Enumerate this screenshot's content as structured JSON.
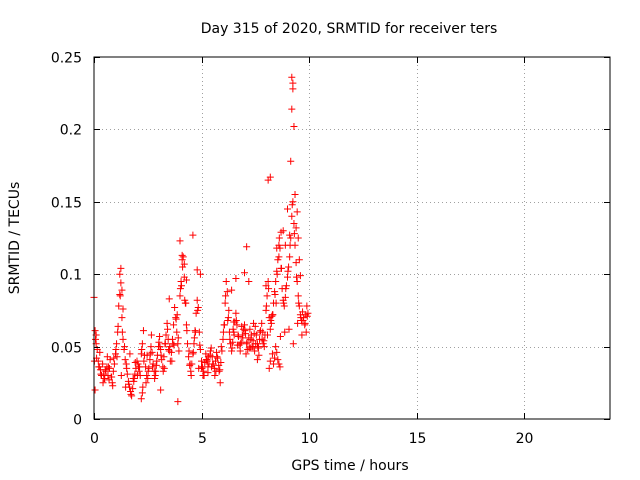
{
  "chart_data": {
    "type": "scatter",
    "title": "Day 315 of 2020, SRMTID for receiver ters",
    "xlabel": "GPS time / hours",
    "ylabel": "SRMTID / TECUs",
    "xlim": [
      0,
      24
    ],
    "ylim": [
      0,
      0.25
    ],
    "xticks": [
      0,
      5,
      10,
      15,
      20
    ],
    "yticks": [
      0,
      0.05,
      0.1,
      0.15,
      0.2,
      0.25
    ],
    "xtick_labels": [
      "0",
      "5",
      "10",
      "15",
      "20"
    ],
    "ytick_labels": [
      "0",
      "0.05",
      "0.1",
      "0.15",
      "0.2",
      "0.25"
    ],
    "grid": true,
    "marker": "+",
    "color": "#ff0000",
    "series": [
      {
        "name": "ters",
        "x": [
          0.0,
          0.05,
          0.1,
          0.15,
          0.2,
          0.25,
          0.3,
          0.35,
          0.4,
          0.45,
          0.5,
          0.55,
          0.6,
          0.65,
          0.7,
          0.75,
          0.8,
          0.85,
          0.9,
          0.95,
          1.0,
          1.05,
          1.1,
          1.15,
          1.2,
          1.25,
          1.3,
          1.35,
          1.4,
          1.45,
          1.5,
          1.55,
          1.6,
          1.65,
          1.7,
          1.75,
          1.8,
          1.85,
          1.9,
          1.95,
          2.0,
          2.05,
          2.1,
          2.15,
          2.2,
          2.25,
          2.3,
          2.35,
          2.4,
          2.45,
          2.5,
          2.55,
          2.6,
          2.65,
          2.7,
          2.75,
          2.8,
          2.85,
          2.9,
          2.95,
          3.0,
          3.05,
          3.1,
          3.15,
          3.2,
          3.25,
          3.3,
          3.35,
          3.4,
          3.45,
          3.5,
          3.55,
          3.6,
          3.65,
          3.7,
          3.75,
          3.8,
          3.85,
          3.9,
          3.95,
          4.0,
          4.05,
          4.1,
          4.15,
          4.2,
          4.25,
          4.3,
          4.35,
          4.4,
          4.45,
          4.5,
          4.55,
          4.6,
          4.65,
          4.7,
          4.75,
          4.8,
          4.85,
          4.9,
          4.95,
          5.0,
          5.05,
          5.1,
          5.15,
          5.2,
          5.25,
          5.3,
          5.35,
          5.4,
          5.45,
          5.5,
          5.55,
          5.6,
          5.65,
          5.7,
          5.75,
          5.8,
          5.85,
          5.9,
          5.95,
          6.0,
          6.05,
          6.1,
          6.15,
          6.2,
          6.25,
          6.3,
          6.35,
          6.4,
          6.45,
          6.5,
          6.55,
          6.6,
          6.65,
          6.7,
          6.75,
          6.8,
          6.85,
          6.9,
          6.95,
          7.0,
          7.05,
          7.1,
          7.15,
          7.2,
          7.25,
          7.3,
          7.35,
          7.4,
          7.45,
          7.5,
          7.55,
          7.6,
          7.65,
          7.7,
          7.75,
          7.8,
          7.85,
          7.9,
          7.95,
          8.0,
          8.05,
          8.1,
          8.15,
          8.2,
          8.25,
          8.3,
          8.35,
          8.4,
          8.45,
          8.5,
          8.55,
          8.6,
          8.65,
          8.7,
          8.75,
          8.8,
          8.85,
          8.9,
          8.95,
          9.0,
          9.05,
          9.1,
          9.15,
          9.2,
          9.25,
          9.3,
          9.35,
          9.4,
          9.45,
          9.5,
          9.55,
          9.6,
          9.65,
          9.7,
          9.75,
          9.8,
          9.85,
          9.9,
          9.95,
          0.02,
          0.12,
          0.22,
          0.32,
          0.42,
          0.52,
          0.62,
          0.72,
          0.82,
          0.92,
          1.02,
          1.12,
          1.22,
          1.32,
          1.42,
          1.52,
          1.62,
          1.72,
          1.82,
          1.92,
          2.02,
          2.12,
          2.22,
          2.32,
          2.42,
          2.52,
          2.62,
          2.72,
          2.82,
          2.92,
          3.02,
          3.12,
          3.22,
          3.32,
          3.42,
          3.52,
          3.62,
          3.72,
          3.82,
          3.92,
          4.02,
          4.12,
          4.22,
          4.32,
          4.42,
          4.52,
          4.62,
          4.72,
          4.82,
          4.92,
          5.02,
          5.12,
          5.22,
          5.32,
          5.42,
          5.52,
          5.62,
          5.72,
          5.82,
          5.92,
          6.02,
          6.12,
          6.22,
          6.32,
          6.42,
          6.52,
          6.62,
          6.72,
          6.82,
          6.92,
          7.02,
          7.12,
          7.22,
          7.32,
          7.42,
          7.52,
          7.62,
          7.72,
          7.82,
          7.92,
          8.02,
          8.12,
          8.22,
          8.32,
          8.42,
          8.52,
          8.62,
          8.72,
          8.82,
          8.92,
          9.02,
          9.12,
          9.22,
          9.32,
          9.42,
          9.52,
          9.62,
          9.72,
          9.82,
          9.92,
          0.07,
          0.27,
          0.47,
          0.67,
          0.87,
          1.07,
          1.27,
          1.47,
          1.67,
          1.87,
          2.07,
          2.27,
          2.47,
          2.67,
          2.87,
          3.07,
          3.27,
          3.47,
          3.67,
          3.87,
          4.07,
          4.27,
          4.47,
          4.67,
          4.87,
          5.07,
          5.27,
          5.47,
          5.67,
          5.87,
          6.07,
          6.27,
          6.47,
          6.67,
          6.87,
          7.07,
          7.27,
          7.47,
          7.67,
          7.87,
          8.07,
          8.27,
          8.47,
          8.67,
          8.87,
          9.07,
          9.27,
          9.47,
          9.67,
          9.87,
          0.05,
          0.1,
          1.2,
          1.25,
          1.3,
          1.35,
          2.2,
          2.25,
          3.1,
          3.5,
          3.9,
          4.0,
          4.1,
          4.2,
          4.3,
          4.6,
          4.8,
          4.95,
          5.0,
          5.3,
          6.4,
          6.5,
          6.6,
          7.0,
          7.1,
          7.2,
          7.4,
          7.6,
          8.0,
          8.1,
          8.2,
          8.5,
          8.6,
          8.7,
          8.8,
          8.9,
          9.0,
          9.1,
          9.15,
          9.2,
          9.2,
          9.25,
          9.25,
          9.3,
          9.35,
          9.4,
          9.45,
          9.5,
          9.55,
          9.6,
          8.15,
          8.2,
          8.3,
          8.35,
          8.4,
          8.45,
          8.5,
          8.55,
          8.6,
          8.65
        ],
        "y": [
          0.084,
          0.061,
          0.052,
          0.048,
          0.04,
          0.036,
          0.034,
          0.03,
          0.038,
          0.031,
          0.028,
          0.033,
          0.036,
          0.03,
          0.027,
          0.041,
          0.029,
          0.025,
          0.033,
          0.038,
          0.045,
          0.052,
          0.06,
          0.078,
          0.086,
          0.094,
          0.07,
          0.055,
          0.048,
          0.041,
          0.038,
          0.031,
          0.026,
          0.022,
          0.019,
          0.016,
          0.021,
          0.026,
          0.031,
          0.035,
          0.04,
          0.038,
          0.033,
          0.03,
          0.045,
          0.052,
          0.061,
          0.044,
          0.036,
          0.03,
          0.028,
          0.035,
          0.041,
          0.05,
          0.046,
          0.038,
          0.033,
          0.03,
          0.037,
          0.044,
          0.05,
          0.057,
          0.048,
          0.041,
          0.036,
          0.043,
          0.052,
          0.058,
          0.066,
          0.055,
          0.047,
          0.04,
          0.046,
          0.055,
          0.065,
          0.077,
          0.07,
          0.06,
          0.052,
          0.047,
          0.085,
          0.095,
          0.11,
          0.112,
          0.098,
          0.08,
          0.065,
          0.052,
          0.043,
          0.037,
          0.033,
          0.038,
          0.045,
          0.052,
          0.061,
          0.073,
          0.082,
          0.077,
          0.06,
          0.048,
          0.04,
          0.036,
          0.033,
          0.039,
          0.045,
          0.041,
          0.036,
          0.038,
          0.044,
          0.049,
          0.043,
          0.038,
          0.035,
          0.04,
          0.046,
          0.042,
          0.037,
          0.034,
          0.039,
          0.047,
          0.055,
          0.065,
          0.08,
          0.095,
          0.088,
          0.07,
          0.06,
          0.052,
          0.047,
          0.053,
          0.06,
          0.067,
          0.073,
          0.065,
          0.058,
          0.051,
          0.047,
          0.053,
          0.058,
          0.062,
          0.065,
          0.059,
          0.052,
          0.048,
          0.056,
          0.062,
          0.055,
          0.05,
          0.054,
          0.059,
          0.064,
          0.058,
          0.052,
          0.049,
          0.055,
          0.061,
          0.066,
          0.06,
          0.054,
          0.058,
          0.075,
          0.085,
          0.095,
          0.07,
          0.062,
          0.066,
          0.072,
          0.08,
          0.088,
          0.095,
          0.102,
          0.11,
          0.12,
          0.118,
          0.104,
          0.09,
          0.082,
          0.078,
          0.084,
          0.092,
          0.098,
          0.105,
          0.112,
          0.125,
          0.14,
          0.15,
          0.135,
          0.12,
          0.108,
          0.095,
          0.085,
          0.078,
          0.072,
          0.068,
          0.074,
          0.07,
          0.065,
          0.072,
          0.078,
          0.073,
          0.04,
          0.042,
          0.036,
          0.031,
          0.025,
          0.034,
          0.043,
          0.035,
          0.029,
          0.042,
          0.048,
          0.064,
          0.085,
          0.06,
          0.05,
          0.035,
          0.024,
          0.017,
          0.028,
          0.039,
          0.03,
          0.036,
          0.048,
          0.04,
          0.025,
          0.033,
          0.045,
          0.036,
          0.028,
          0.04,
          0.053,
          0.044,
          0.033,
          0.052,
          0.062,
          0.05,
          0.04,
          0.051,
          0.069,
          0.056,
          0.09,
          0.105,
          0.082,
          0.061,
          0.047,
          0.03,
          0.046,
          0.06,
          0.075,
          0.051,
          0.035,
          0.03,
          0.041,
          0.043,
          0.047,
          0.038,
          0.03,
          0.043,
          0.033,
          0.05,
          0.06,
          0.085,
          0.068,
          0.055,
          0.049,
          0.058,
          0.068,
          0.057,
          0.052,
          0.056,
          0.061,
          0.053,
          0.049,
          0.058,
          0.066,
          0.052,
          0.05,
          0.06,
          0.055,
          0.05,
          0.078,
          0.09,
          0.068,
          0.072,
          0.086,
          0.1,
          0.125,
          0.104,
          0.08,
          0.09,
          0.102,
          0.12,
          0.148,
          0.128,
          0.098,
          0.08,
          0.07,
          0.068,
          0.066,
          0.071,
          0.055,
          0.046,
          0.028,
          0.036,
          0.023,
          0.043,
          0.03,
          0.022,
          0.045,
          0.028,
          0.036,
          0.022,
          0.044,
          0.058,
          0.033,
          0.05,
          0.035,
          0.048,
          0.052,
          0.072,
          0.092,
          0.08,
          0.038,
          0.056,
          0.035,
          0.03,
          0.04,
          0.036,
          0.033,
          0.025,
          0.065,
          0.075,
          0.062,
          0.051,
          0.064,
          0.045,
          0.049,
          0.047,
          0.044,
          0.052,
          0.058,
          0.071,
          0.08,
          0.057,
          0.06,
          0.062,
          0.052,
          0.066,
          0.058,
          0.06,
          0.02,
          0.058,
          0.1,
          0.104,
          0.089,
          0.076,
          0.014,
          0.018,
          0.02,
          0.083,
          0.012,
          0.123,
          0.113,
          0.107,
          0.096,
          0.127,
          0.103,
          0.1,
          0.036,
          0.032,
          0.089,
          0.067,
          0.097,
          0.101,
          0.119,
          0.095,
          0.05,
          0.041,
          0.092,
          0.165,
          0.167,
          0.118,
          0.112,
          0.129,
          0.13,
          0.12,
          0.145,
          0.127,
          0.178,
          0.214,
          0.236,
          0.232,
          0.228,
          0.202,
          0.155,
          0.132,
          0.143,
          0.125,
          0.11,
          0.099,
          0.035,
          0.04,
          0.045,
          0.038,
          0.042,
          0.05,
          0.046,
          0.041,
          0.038,
          0.036
        ]
      }
    ]
  }
}
